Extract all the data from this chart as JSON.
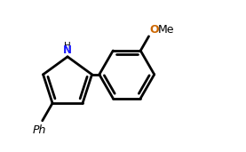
{
  "bg_color": "#ffffff",
  "line_color": "#000000",
  "N_color": "#1a1aff",
  "OMe_O_color": "#cc6600",
  "line_width": 2.0,
  "figsize": [
    2.77,
    1.71
  ],
  "dpi": 100,
  "xlim": [
    0.05,
    2.72
  ],
  "ylim": [
    0.22,
    1.68
  ]
}
